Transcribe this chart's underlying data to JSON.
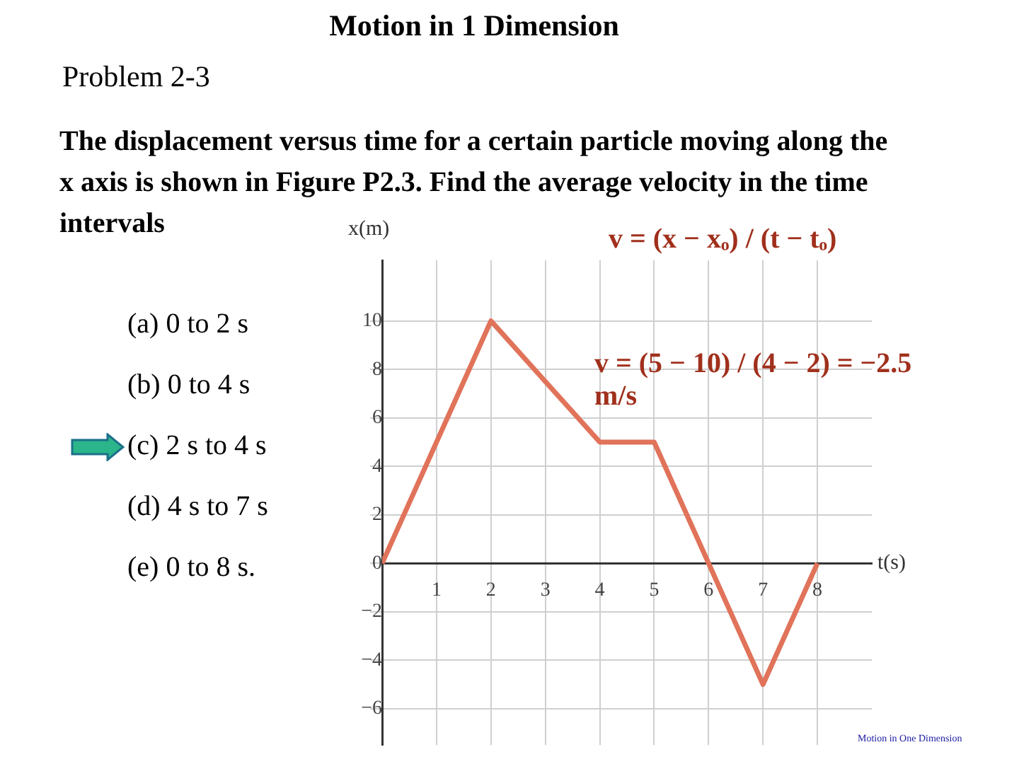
{
  "chart_data": {
    "type": "line",
    "title": "Motion in 1 Dimension",
    "subtitle": "Problem 2-3",
    "xlabel": "t(s)",
    "ylabel": "x(m)",
    "x": [
      0,
      2,
      4,
      5,
      7,
      8
    ],
    "values": [
      0,
      10,
      5,
      5,
      -5,
      0
    ],
    "color": "#e0735a",
    "xlim": [
      0,
      9
    ],
    "ylim": [
      -7.5,
      12.5
    ],
    "xticks": [
      1,
      2,
      3,
      4,
      5,
      6,
      7,
      8
    ],
    "yticks": [
      -6,
      -4,
      -2,
      0,
      2,
      4,
      6,
      8,
      10
    ],
    "grid": true,
    "marker": "none",
    "line_style": "solid",
    "annotations": [
      "The displacement versus time for a certain particle moving along the x axis is shown in Figure P2.3. Find the average velocity in the time intervals",
      "(a)  0 to 2 s",
      "(b)  0 to 4 s",
      "(c)  2 s to 4 s",
      "(d)  4 s to 7 s",
      "(e)  0 to 8 s.",
      "v = (x − xₒ) / (t − tₒ)",
      "v = (5 − 10) / (4 − 2) = −2.5 m/s",
      "Motion in One Dimension"
    ]
  }
}
